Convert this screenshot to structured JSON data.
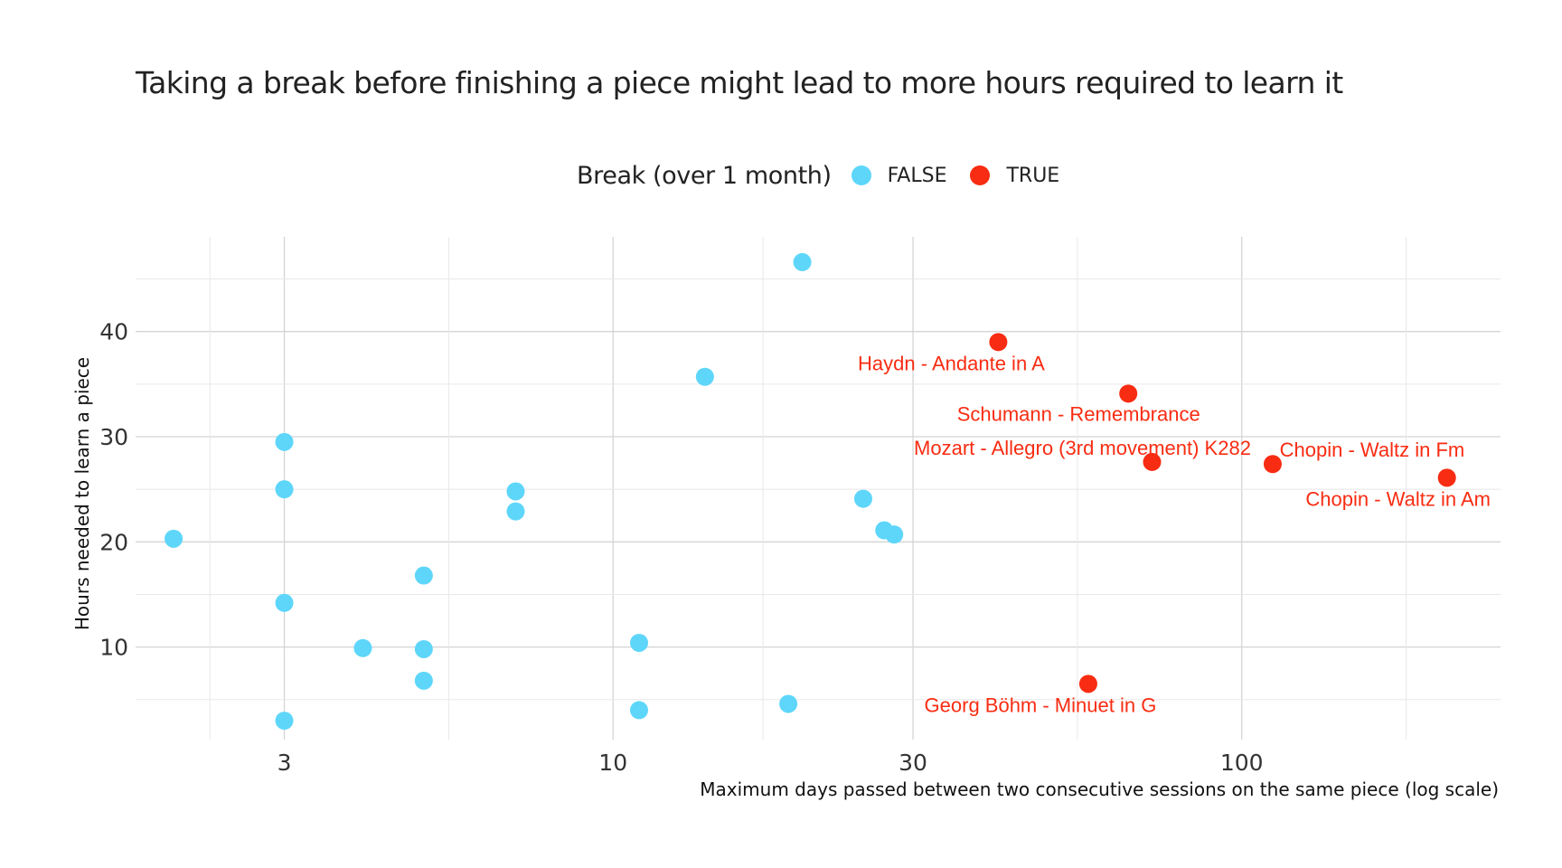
{
  "chart_data": {
    "type": "scatter",
    "title": "Taking a break before finishing a piece might lead to more hours required to learn it",
    "xlabel": "Maximum days passed between two consecutive sessions on the same piece (log scale)",
    "ylabel": "Hours needed to learn a piece",
    "x_scale": "log",
    "xlim": [
      1.74,
      258
    ],
    "ylim": [
      1.2,
      49
    ],
    "x_ticks": [
      3,
      10,
      30,
      100
    ],
    "y_ticks": [
      10,
      20,
      30,
      40
    ],
    "grid": true,
    "legend": {
      "title": "Break (over 1 month)",
      "position": "top",
      "entries": [
        {
          "label": "FALSE",
          "color": "#5ED6FA"
        },
        {
          "label": "TRUE",
          "color": "#F82C12"
        }
      ]
    },
    "series": [
      {
        "name": "FALSE",
        "color": "#5ED6FA",
        "points": [
          {
            "x": 2.0,
            "y": 20.3
          },
          {
            "x": 3.0,
            "y": 29.5
          },
          {
            "x": 3.0,
            "y": 25.0
          },
          {
            "x": 3.0,
            "y": 14.2
          },
          {
            "x": 3.0,
            "y": 3.0
          },
          {
            "x": 4.0,
            "y": 9.9
          },
          {
            "x": 5.0,
            "y": 16.8
          },
          {
            "x": 5.0,
            "y": 9.8
          },
          {
            "x": 5.0,
            "y": 6.8
          },
          {
            "x": 7.0,
            "y": 24.8
          },
          {
            "x": 7.0,
            "y": 22.9
          },
          {
            "x": 11.0,
            "y": 10.4
          },
          {
            "x": 11.0,
            "y": 4.0
          },
          {
            "x": 14.0,
            "y": 35.7
          },
          {
            "x": 19.0,
            "y": 4.6
          },
          {
            "x": 20.0,
            "y": 46.6
          },
          {
            "x": 25.0,
            "y": 24.1
          },
          {
            "x": 27.0,
            "y": 21.1
          },
          {
            "x": 28.0,
            "y": 20.7
          }
        ]
      },
      {
        "name": "TRUE",
        "color": "#F82C12",
        "points": [
          {
            "x": 41.0,
            "y": 39.0,
            "label": "Haydn - Andante in A"
          },
          {
            "x": 57.0,
            "y": 6.5,
            "label": "Georg Böhm - Minuet in G"
          },
          {
            "x": 66.0,
            "y": 34.1,
            "label": "Schumann - Remembrance"
          },
          {
            "x": 72.0,
            "y": 27.6,
            "label": "Mozart - Allegro (3rd movement) K282"
          },
          {
            "x": 112.0,
            "y": 27.4,
            "label": "Chopin - Waltz in Fm"
          },
          {
            "x": 212.0,
            "y": 26.1,
            "label": "Chopin - Waltz in Am"
          }
        ]
      }
    ]
  }
}
